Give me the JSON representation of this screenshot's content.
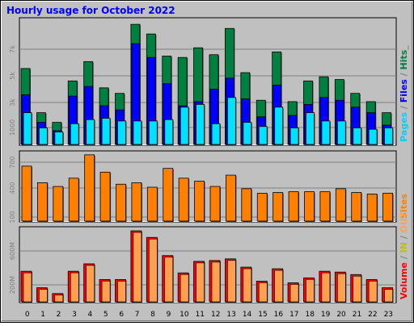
{
  "title": "Hourly usage for October 2022",
  "colors": {
    "background": "#c0c0c0",
    "panel": "#c0c0c0",
    "title": "#0000ff",
    "hits": "#008040",
    "files": "#0000ff",
    "pages": "#00e0ff",
    "sites": "#ff8000",
    "volume": "#ff0000",
    "in": "#ffff00",
    "out": "#ffa050",
    "grid": "#808080"
  },
  "legend": {
    "top": [
      {
        "text": "Pages",
        "color": "#00d0ff"
      },
      {
        "text": " / ",
        "color": "#808080"
      },
      {
        "text": "Files",
        "color": "#0000ff"
      },
      {
        "text": " / ",
        "color": "#808080"
      },
      {
        "text": "Hits",
        "color": "#008040"
      },
      {
        "text": "_",
        "color": "#808080"
      }
    ],
    "middle": [
      {
        "text": "Sites",
        "color": "#ff8000"
      }
    ],
    "bottom": [
      {
        "text": "Volume",
        "color": "#ff0000"
      },
      {
        "text": " / ",
        "color": "#808080"
      },
      {
        "text": "IN",
        "color": "#c0c000"
      },
      {
        "text": " / ",
        "color": "#808080"
      },
      {
        "text": "OUT",
        "color": "#ffa050"
      }
    ]
  },
  "chart_data": [
    {
      "type": "bar",
      "panel": "hits-files-pages",
      "categories": [
        "0",
        "1",
        "2",
        "3",
        "4",
        "5",
        "6",
        "7",
        "8",
        "9",
        "10",
        "11",
        "12",
        "13",
        "14",
        "15",
        "16",
        "17",
        "18",
        "19",
        "20",
        "21",
        "22",
        "23"
      ],
      "yticks": [
        "1000",
        "3k",
        "5k",
        "7k"
      ],
      "ylim": [
        0,
        9000
      ],
      "series": [
        {
          "name": "Hits",
          "values": [
            5500,
            2300,
            1600,
            4600,
            6000,
            4100,
            3700,
            8700,
            8000,
            6400,
            6300,
            7000,
            6500,
            8400,
            5200,
            3200,
            6700,
            3100,
            4600,
            4900,
            4700,
            3700,
            3100,
            2300
          ]
        },
        {
          "name": "Files",
          "values": [
            3600,
            1600,
            1000,
            3500,
            4200,
            2800,
            2500,
            7300,
            6300,
            4400,
            2800,
            3100,
            4000,
            4800,
            3300,
            2000,
            4300,
            2100,
            2900,
            3400,
            3200,
            2700,
            2300,
            1400
          ]
        },
        {
          "name": "Pages",
          "values": [
            2300,
            1200,
            900,
            1500,
            1800,
            1900,
            1700,
            1700,
            1700,
            1800,
            2700,
            2900,
            1500,
            3400,
            1600,
            1300,
            2700,
            1200,
            2300,
            1700,
            1700,
            1200,
            1100,
            1200
          ]
        }
      ]
    },
    {
      "type": "bar",
      "panel": "sites",
      "categories": [
        "0",
        "1",
        "2",
        "3",
        "4",
        "5",
        "6",
        "7",
        "8",
        "9",
        "10",
        "11",
        "12",
        "13",
        "14",
        "15",
        "16",
        "17",
        "18",
        "19",
        "20",
        "21",
        "22",
        "23"
      ],
      "yticks": [
        "100",
        "400",
        "700"
      ],
      "ylim": [
        0,
        900
      ],
      "series": [
        {
          "name": "Sites",
          "values": [
            730,
            510,
            460,
            570,
            880,
            650,
            490,
            510,
            450,
            700,
            570,
            530,
            460,
            610,
            430,
            370,
            380,
            390,
            390,
            390,
            430,
            380,
            360,
            370
          ]
        }
      ]
    },
    {
      "type": "bar",
      "panel": "volume",
      "categories": [
        "0",
        "1",
        "2",
        "3",
        "4",
        "5",
        "6",
        "7",
        "8",
        "9",
        "10",
        "11",
        "12",
        "13",
        "14",
        "15",
        "16",
        "17",
        "18",
        "19",
        "20",
        "21",
        "22",
        "23"
      ],
      "yticks": [
        "200M",
        "600M"
      ],
      "ylim": [
        0,
        880
      ],
      "series": [
        {
          "name": "Volume",
          "values": [
            370,
            170,
            100,
            370,
            460,
            270,
            270,
            860,
            780,
            560,
            350,
            490,
            500,
            520,
            420,
            250,
            400,
            230,
            290,
            370,
            360,
            330,
            270,
            170
          ]
        }
      ]
    }
  ],
  "xlabels": [
    "0",
    "1",
    "2",
    "3",
    "4",
    "5",
    "6",
    "7",
    "8",
    "9",
    "10",
    "11",
    "12",
    "13",
    "14",
    "15",
    "16",
    "17",
    "18",
    "19",
    "20",
    "21",
    "22",
    "23"
  ]
}
